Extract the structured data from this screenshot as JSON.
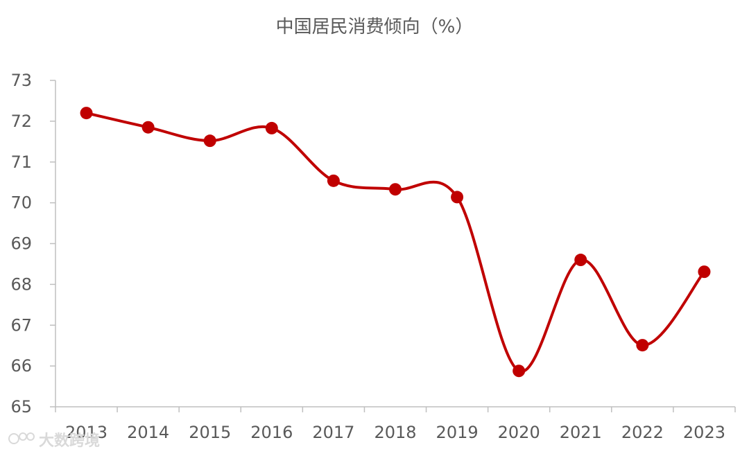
{
  "chart_data": {
    "type": "line",
    "title": "中国居民消费倾向（%）",
    "xlabel": "",
    "ylabel": "",
    "categories": [
      "2013",
      "2014",
      "2015",
      "2016",
      "2017",
      "2018",
      "2019",
      "2020",
      "2021",
      "2022",
      "2023"
    ],
    "series": [
      {
        "values": [
          72.2,
          71.85,
          71.52,
          71.83,
          70.54,
          70.33,
          70.14,
          65.88,
          68.6,
          66.51,
          68.31
        ],
        "color": "#c00000",
        "smooth": true,
        "markers": true
      }
    ],
    "ylim": [
      65,
      73
    ],
    "yticks": [
      65,
      66,
      67,
      68,
      69,
      70,
      71,
      72,
      73
    ],
    "grid": false,
    "legend": "none"
  },
  "watermark": {
    "icon": "logo-icon",
    "text": "大数跨境"
  },
  "colors": {
    "axis": "#bfbfbf",
    "text": "#595959",
    "series": "#c00000"
  }
}
